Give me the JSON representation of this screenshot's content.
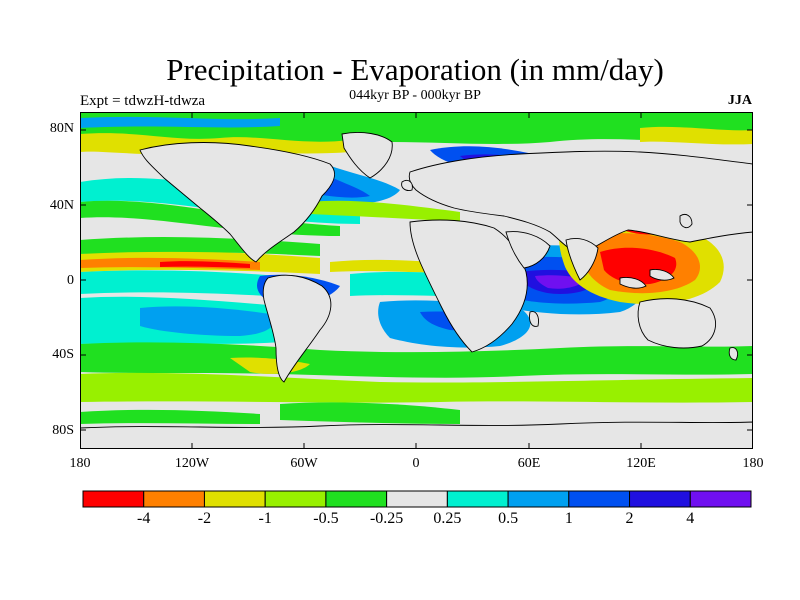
{
  "title": "Precipitation - Evaporation (in mm/day)",
  "subtitle": "044kyr BP - 000kyr BP",
  "experiment": "Expt = tdwzH-tdwza",
  "season": "JJA",
  "lat_labels": [
    "80N",
    "40N",
    "0",
    "40S",
    "80S"
  ],
  "lon_labels": [
    "180",
    "120W",
    "60W",
    "0",
    "60E",
    "120E",
    "180"
  ],
  "colorbar": {
    "colors": [
      "#ff0000",
      "#ff8000",
      "#e0e000",
      "#98f000",
      "#20e020",
      "#e6e6e6",
      "#00f0d0",
      "#00a0f0",
      "#0050f0",
      "#2010e0",
      "#7010f0"
    ],
    "labels": [
      "-4",
      "-2",
      "-1",
      "-0.5",
      "-0.25",
      "0.25",
      "0.5",
      "1",
      "2",
      "4"
    ]
  },
  "palette": {
    "land": "#e6e6e6",
    "ocean_neutral": "#e6e6e6",
    "coast": "#000000"
  }
}
